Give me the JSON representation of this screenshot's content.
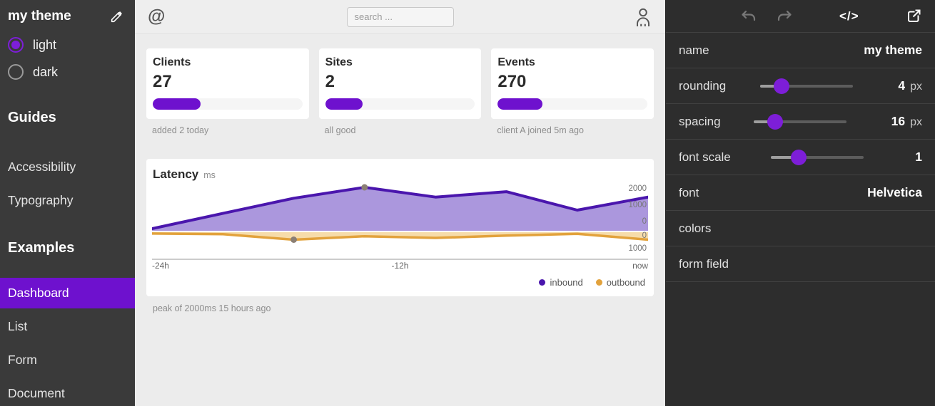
{
  "colors": {
    "accent": "#6e11ce",
    "slider_thumb": "#7d1ed8",
    "sidebar_bg": "#3a3a3a",
    "inspector_bg": "#2d2d2d",
    "preview_bg": "#ececec",
    "card_bg": "#ffffff"
  },
  "sidebar": {
    "title": "my theme",
    "theme_options": [
      {
        "label": "light",
        "selected": true
      },
      {
        "label": "dark",
        "selected": false
      }
    ],
    "sections": [
      {
        "heading": "Guides",
        "items": [
          {
            "label": "Accessibility",
            "active": false
          },
          {
            "label": "Typography",
            "active": false
          }
        ]
      },
      {
        "heading": "Examples",
        "items": [
          {
            "label": "Dashboard",
            "active": true
          },
          {
            "label": "List",
            "active": false
          },
          {
            "label": "Form",
            "active": false
          },
          {
            "label": "Document",
            "active": false
          }
        ]
      }
    ]
  },
  "preview": {
    "topbar": {
      "logo_glyph": "@",
      "search_placeholder": "search ..."
    },
    "stat_cards": [
      {
        "title": "Clients",
        "value": "27",
        "progress_pct": 32,
        "caption": "added 2 today"
      },
      {
        "title": "Sites",
        "value": "2",
        "progress_pct": 25,
        "caption": "all good"
      },
      {
        "title": "Events",
        "value": "270",
        "progress_pct": 30,
        "caption": "client A joined 5m ago"
      }
    ]
  },
  "chart_data": {
    "type": "area",
    "title": "Latency",
    "unit": "ms",
    "x_ticks": [
      "-24h",
      "-12h",
      "now"
    ],
    "series": [
      {
        "name": "inbound",
        "stroke": "#4a16ad",
        "fill": "#ab97dd",
        "values": [
          100,
          800,
          1500,
          2000,
          1550,
          1800,
          950,
          1550
        ],
        "axis_ticks": [
          "2000",
          "1000",
          "0"
        ],
        "max": 2000,
        "inverted": false,
        "marker_index": 3
      },
      {
        "name": "outbound",
        "stroke": "#e2a23c",
        "fill": "#f6dcaa",
        "values": [
          100,
          150,
          550,
          300,
          420,
          250,
          120,
          550
        ],
        "axis_ticks": [
          "0",
          "1000"
        ],
        "max": 1000,
        "inverted": true,
        "marker_index": 2
      }
    ],
    "legend_position": "bottom-right",
    "annotation": "peak of 2000ms 15 hours ago"
  },
  "inspector": {
    "toolbar_icons": [
      "apps-grid",
      "undo",
      "redo",
      "code",
      "open-external"
    ],
    "rows": [
      {
        "label": "name",
        "type": "text",
        "value": "my theme",
        "unit": ""
      },
      {
        "label": "rounding",
        "type": "slider",
        "value": "4",
        "unit": "px",
        "pct": 23
      },
      {
        "label": "spacing",
        "type": "slider",
        "value": "16",
        "unit": "px",
        "pct": 23
      },
      {
        "label": "font scale",
        "type": "slider",
        "value": "1",
        "unit": "",
        "pct": 30
      },
      {
        "label": "font",
        "type": "text",
        "value": "Helvetica",
        "unit": ""
      },
      {
        "label": "colors",
        "type": "link",
        "value": "",
        "unit": ""
      },
      {
        "label": "form field",
        "type": "link",
        "value": "",
        "unit": ""
      }
    ]
  }
}
